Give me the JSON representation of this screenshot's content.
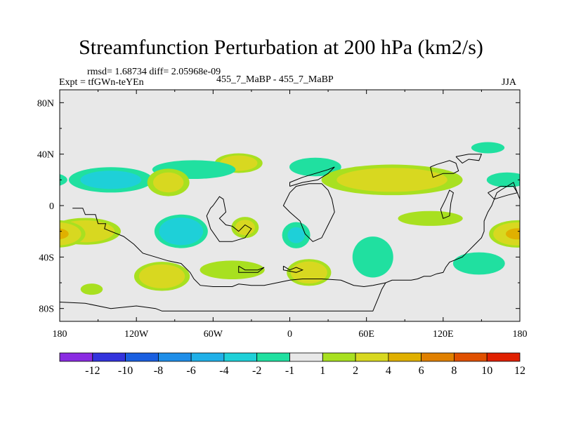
{
  "chart_data": {
    "type": "heatmap",
    "title": "Streamfunction Perturbation at 200 hPa (km2/s)",
    "stats_line": "rmsd= 1.68734 diff= 2.05968e-09",
    "experiment": "Expt = tfGWn-teYEn",
    "center_label": "455_7_MaBP - 455_7_MaBP",
    "season": "JJA",
    "x_range": [
      -180,
      180
    ],
    "y_range": [
      -90,
      90
    ],
    "x_ticks": [
      {
        "value": -180,
        "label": "180"
      },
      {
        "value": -120,
        "label": "120W"
      },
      {
        "value": -60,
        "label": "60W"
      },
      {
        "value": 0,
        "label": "0"
      },
      {
        "value": 60,
        "label": "60E"
      },
      {
        "value": 120,
        "label": "120E"
      },
      {
        "value": 180,
        "label": "180"
      }
    ],
    "y_ticks": [
      {
        "value": 80,
        "label": "80N"
      },
      {
        "value": 40,
        "label": "40N"
      },
      {
        "value": 0,
        "label": "0"
      },
      {
        "value": -40,
        "label": "40S"
      },
      {
        "value": -80,
        "label": "80S"
      }
    ],
    "colorbar_labels": [
      "-12",
      "-10",
      "-8",
      "-6",
      "-4",
      "-2",
      "-1",
      "1",
      "2",
      "4",
      "6",
      "8",
      "10",
      "12"
    ],
    "colorbar_colors": [
      "#8a2be2",
      "#3333dd",
      "#1a5fe0",
      "#1f8ee8",
      "#20b0e8",
      "#1ed0d8",
      "#20e0a0",
      "#e8e8e8",
      "#a8e020",
      "#d8d820",
      "#e0b000",
      "#e08000",
      "#e05000",
      "#e02000"
    ],
    "anomaly_centers": [
      {
        "lon": -40,
        "lat": 33,
        "rlon": 22,
        "rlat": 9,
        "value": 3
      },
      {
        "lon": -75,
        "lat": 28,
        "rlon": 45,
        "rlat": 10,
        "value": -1.5
      },
      {
        "lon": -140,
        "lat": 20,
        "rlon": 40,
        "rlat": 12,
        "value": -2.5
      },
      {
        "lon": -95,
        "lat": 18,
        "rlon": 20,
        "rlat": 13,
        "value": 2.5
      },
      {
        "lon": -160,
        "lat": -20,
        "rlon": 32,
        "rlat": 12,
        "value": 3.5
      },
      {
        "lon": -85,
        "lat": -20,
        "rlon": 24,
        "rlat": 15,
        "value": -3.5
      },
      {
        "lon": -35,
        "lat": -17,
        "rlon": 13,
        "rlat": 10,
        "value": 2.5
      },
      {
        "lon": 5,
        "lat": -23,
        "rlon": 14,
        "rlat": 13,
        "value": -2
      },
      {
        "lon": -100,
        "lat": -55,
        "rlon": 25,
        "rlat": 13,
        "value": 3.5
      },
      {
        "lon": -45,
        "lat": -50,
        "rlon": 35,
        "rlat": 10,
        "value": 1.5
      },
      {
        "lon": 15,
        "lat": -52,
        "rlon": 20,
        "rlat": 12,
        "value": 3.5
      },
      {
        "lon": 65,
        "lat": -40,
        "rlon": 22,
        "rlat": 22,
        "value": -1.5
      },
      {
        "lon": 110,
        "lat": -10,
        "rlon": 35,
        "rlat": 8,
        "value": 1.5
      },
      {
        "lon": 148,
        "lat": -45,
        "rlon": 28,
        "rlat": 12,
        "value": -1.5
      },
      {
        "lon": 178,
        "lat": -22,
        "rlon": 25,
        "rlat": 12,
        "value": 4
      },
      {
        "lon": 20,
        "lat": 30,
        "rlon": 28,
        "rlat": 10,
        "value": -1.5
      },
      {
        "lon": 80,
        "lat": 20,
        "rlon": 65,
        "rlat": 14,
        "value": 3
      },
      {
        "lon": 155,
        "lat": 45,
        "rlon": 18,
        "rlat": 6,
        "value": -1.5
      },
      {
        "lon": 170,
        "lat": 20,
        "rlon": 22,
        "rlat": 8,
        "value": -1.5
      },
      {
        "lon": -155,
        "lat": -65,
        "rlon": 12,
        "rlat": 6,
        "value": 1.5
      }
    ],
    "coastline_outline": [
      [
        [
          -170,
          -2
        ],
        [
          -162,
          -2
        ],
        [
          -160,
          -7
        ],
        [
          -152,
          -7
        ],
        [
          -150,
          -14
        ],
        [
          -144,
          -14
        ],
        [
          -145,
          -18
        ],
        [
          -140,
          -20
        ],
        [
          -130,
          -24
        ],
        [
          -122,
          -30
        ],
        [
          -115,
          -37
        ],
        [
          -105,
          -40
        ],
        [
          -95,
          -43
        ],
        [
          -85,
          -45
        ],
        [
          -78,
          -52
        ],
        [
          -75,
          -57
        ],
        [
          -70,
          -62
        ],
        [
          -60,
          -63
        ],
        [
          -45,
          -63
        ],
        [
          -40,
          -61
        ],
        [
          -30,
          -62
        ],
        [
          -20,
          -62
        ],
        [
          -10,
          -60
        ],
        [
          0,
          -58
        ],
        [
          10,
          -57
        ],
        [
          25,
          -57
        ],
        [
          40,
          -58
        ],
        [
          50,
          -62
        ],
        [
          58,
          -63
        ],
        [
          65,
          -62
        ],
        [
          75,
          -60
        ],
        [
          80,
          -58
        ],
        [
          90,
          -58
        ],
        [
          95,
          -58
        ],
        [
          100,
          -57
        ],
        [
          105,
          -55
        ],
        [
          110,
          -55
        ],
        [
          115,
          -53
        ],
        [
          120,
          -52
        ],
        [
          122,
          -48
        ],
        [
          125,
          -44
        ],
        [
          135,
          -40
        ],
        [
          140,
          -35
        ],
        [
          145,
          -30
        ],
        [
          150,
          -25
        ],
        [
          152,
          -20
        ],
        [
          152,
          -12
        ],
        [
          155,
          -5
        ],
        [
          158,
          0
        ],
        [
          160,
          5
        ],
        [
          162,
          10
        ],
        [
          165,
          12
        ],
        [
          170,
          15
        ],
        [
          175,
          18
        ],
        [
          178,
          10
        ],
        [
          180,
          5
        ]
      ],
      [
        [
          -180,
          -75
        ],
        [
          -160,
          -76
        ],
        [
          -140,
          -80
        ],
        [
          -120,
          -78
        ],
        [
          -105,
          -80
        ],
        [
          -100,
          -82
        ],
        [
          -40,
          -82
        ],
        [
          -20,
          -82
        ],
        [
          0,
          -82
        ],
        [
          20,
          -82
        ],
        [
          40,
          -82
        ],
        [
          65,
          -82
        ],
        [
          70,
          -70
        ],
        [
          72,
          -65
        ],
        [
          75,
          -60
        ]
      ],
      [
        [
          -60,
          0
        ],
        [
          -55,
          7
        ],
        [
          -52,
          5
        ],
        [
          -50,
          -5
        ],
        [
          -55,
          -10
        ],
        [
          -50,
          -15
        ],
        [
          -45,
          -16
        ],
        [
          -40,
          -20
        ],
        [
          -35,
          -15
        ],
        [
          -30,
          -18
        ],
        [
          -35,
          -25
        ],
        [
          -45,
          -28
        ],
        [
          -55,
          -28
        ],
        [
          -62,
          -18
        ],
        [
          -65,
          -8
        ],
        [
          -62,
          -2
        ],
        [
          -60,
          0
        ]
      ],
      [
        [
          0,
          10
        ],
        [
          5,
          15
        ],
        [
          15,
          17
        ],
        [
          25,
          17
        ],
        [
          30,
          12
        ],
        [
          33,
          5
        ],
        [
          35,
          -5
        ],
        [
          30,
          -15
        ],
        [
          25,
          -25
        ],
        [
          18,
          -28
        ],
        [
          12,
          -22
        ],
        [
          8,
          -12
        ],
        [
          0,
          -5
        ],
        [
          -5,
          0
        ],
        [
          0,
          10
        ]
      ],
      [
        [
          0,
          15
        ],
        [
          0,
          18
        ],
        [
          10,
          22
        ],
        [
          20,
          25
        ],
        [
          30,
          28
        ],
        [
          35,
          30
        ],
        [
          30,
          25
        ],
        [
          22,
          20
        ],
        [
          10,
          18
        ],
        [
          0,
          15
        ]
      ],
      [
        [
          -40,
          -47
        ],
        [
          -35,
          -50
        ],
        [
          -25,
          -50
        ],
        [
          -20,
          -48
        ],
        [
          -25,
          -52
        ],
        [
          -40,
          -52
        ],
        [
          -40,
          -47
        ]
      ],
      [
        [
          -5,
          -47
        ],
        [
          0,
          -50
        ],
        [
          5,
          -48
        ],
        [
          10,
          -50
        ],
        [
          5,
          -52
        ],
        [
          -5,
          -50
        ],
        [
          -5,
          -47
        ]
      ],
      [
        [
          110,
          30
        ],
        [
          115,
          32
        ],
        [
          125,
          35
        ],
        [
          130,
          33
        ],
        [
          132,
          27
        ],
        [
          128,
          25
        ],
        [
          120,
          25
        ],
        [
          112,
          22
        ],
        [
          110,
          30
        ]
      ],
      [
        [
          118,
          -3
        ],
        [
          122,
          5
        ],
        [
          125,
          12
        ],
        [
          128,
          10
        ],
        [
          126,
          2
        ],
        [
          125,
          -8
        ],
        [
          120,
          -10
        ],
        [
          118,
          -3
        ]
      ],
      [
        [
          130,
          38
        ],
        [
          140,
          40
        ],
        [
          150,
          40
        ],
        [
          148,
          35
        ],
        [
          140,
          36
        ],
        [
          135,
          33
        ],
        [
          130,
          38
        ]
      ],
      [
        [
          155,
          10
        ],
        [
          165,
          15
        ],
        [
          175,
          15
        ],
        [
          178,
          10
        ],
        [
          170,
          8
        ],
        [
          160,
          5
        ],
        [
          155,
          10
        ]
      ]
    ]
  }
}
